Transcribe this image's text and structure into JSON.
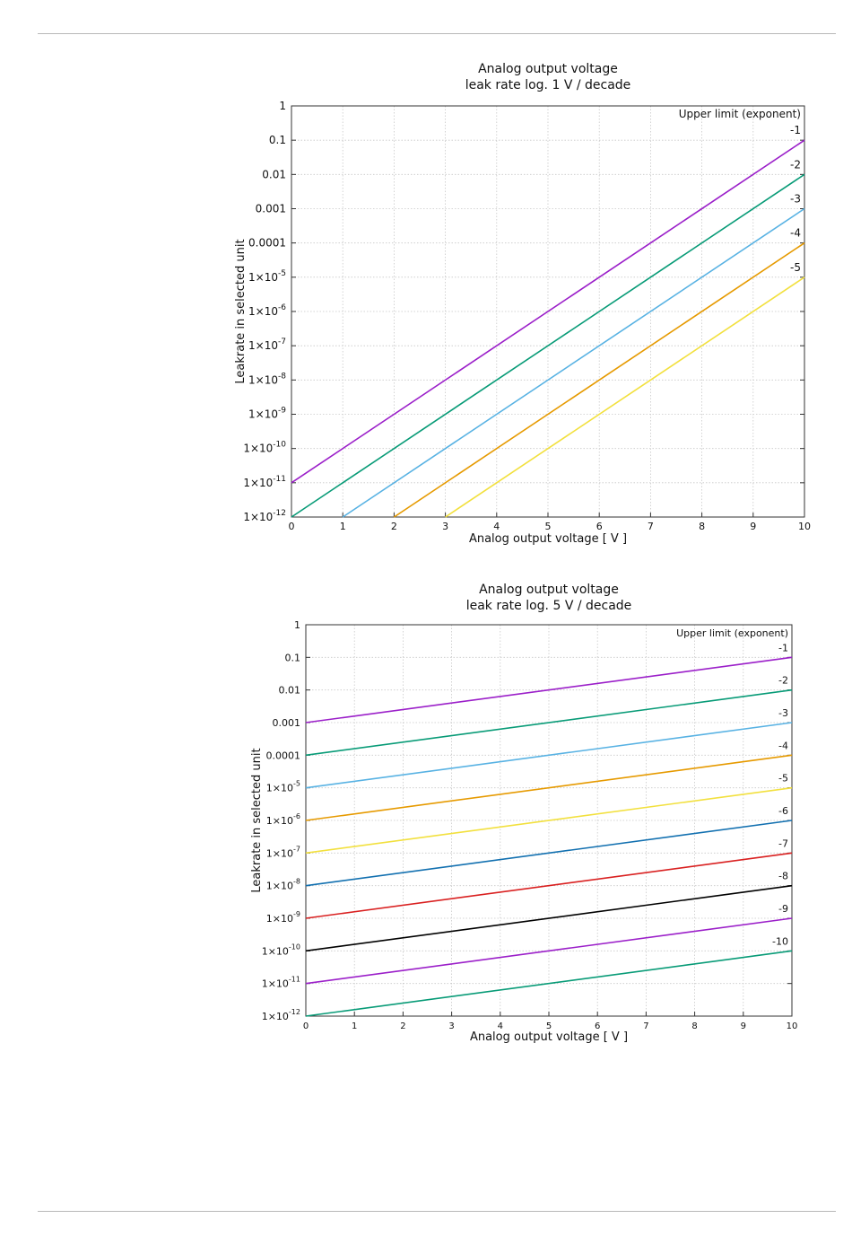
{
  "chart_data": [
    {
      "type": "line",
      "title": "Analog output voltage",
      "subtitle": "leak rate log. 1 V / decade",
      "xlabel": "Analog output voltage [ V ]",
      "ylabel": "Leakrate in selected unit",
      "xlim": [
        0,
        10
      ],
      "ylim_exponent": [
        -12,
        0
      ],
      "y_scale": "log",
      "grid": true,
      "xticks": [
        "0",
        "1",
        "2",
        "3",
        "4",
        "5",
        "6",
        "7",
        "8",
        "9",
        "10"
      ],
      "yticks": [
        {
          "mantissa": "1",
          "exp": ""
        },
        {
          "mantissa": "0.1",
          "exp": ""
        },
        {
          "mantissa": "0.01",
          "exp": ""
        },
        {
          "mantissa": "0.001",
          "exp": ""
        },
        {
          "mantissa": "0.0001",
          "exp": ""
        },
        {
          "mantissa": "1×10",
          "exp": "-5"
        },
        {
          "mantissa": "1×10",
          "exp": "-6"
        },
        {
          "mantissa": "1×10",
          "exp": "-7"
        },
        {
          "mantissa": "1×10",
          "exp": "-8"
        },
        {
          "mantissa": "1×10",
          "exp": "-9"
        },
        {
          "mantissa": "1×10",
          "exp": "-10"
        },
        {
          "mantissa": "1×10",
          "exp": "-11"
        },
        {
          "mantissa": "1×10",
          "exp": "-12"
        }
      ],
      "legend_title": "Upper limit (exponent)",
      "legend_position": "top-right",
      "series": [
        {
          "label": "-1",
          "color": "#9b1fc9",
          "x": [
            0,
            10
          ],
          "y": [
            1e-11,
            0.1
          ]
        },
        {
          "label": "-2",
          "color": "#089b77",
          "x": [
            0,
            10
          ],
          "y": [
            1e-12,
            0.01
          ]
        },
        {
          "label": "-3",
          "color": "#58b2e3",
          "x": [
            1,
            10
          ],
          "y": [
            1e-12,
            0.001
          ]
        },
        {
          "label": "-4",
          "color": "#e69a00",
          "x": [
            2,
            10
          ],
          "y": [
            1e-12,
            0.0001
          ]
        },
        {
          "label": "-5",
          "color": "#f2e03e",
          "x": [
            3,
            10
          ],
          "y": [
            1e-12,
            1e-05
          ]
        }
      ]
    },
    {
      "type": "line",
      "title": "Analog output voltage",
      "subtitle": "leak rate log. 5 V / decade",
      "xlabel": "Analog output voltage [ V ]",
      "ylabel": "Leakrate in selected unit",
      "xlim": [
        0,
        10
      ],
      "ylim_exponent": [
        -12,
        0
      ],
      "y_scale": "log",
      "grid": true,
      "xticks": [
        "0",
        "1",
        "2",
        "3",
        "4",
        "5",
        "6",
        "7",
        "8",
        "9",
        "10"
      ],
      "yticks": [
        {
          "mantissa": "1",
          "exp": ""
        },
        {
          "mantissa": "0.1",
          "exp": ""
        },
        {
          "mantissa": "0.01",
          "exp": ""
        },
        {
          "mantissa": "0.001",
          "exp": ""
        },
        {
          "mantissa": "0.0001",
          "exp": ""
        },
        {
          "mantissa": "1×10",
          "exp": "-5"
        },
        {
          "mantissa": "1×10",
          "exp": "-6"
        },
        {
          "mantissa": "1×10",
          "exp": "-7"
        },
        {
          "mantissa": "1×10",
          "exp": "-8"
        },
        {
          "mantissa": "1×10",
          "exp": "-9"
        },
        {
          "mantissa": "1×10",
          "exp": "-10"
        },
        {
          "mantissa": "1×10",
          "exp": "-11"
        },
        {
          "mantissa": "1×10",
          "exp": "-12"
        }
      ],
      "legend_title": "Upper limit (exponent)",
      "legend_position": "top-right",
      "series": [
        {
          "label": "-1",
          "color": "#9b1fc9",
          "x": [
            0,
            10
          ],
          "y": [
            0.001,
            0.1
          ]
        },
        {
          "label": "-2",
          "color": "#089b77",
          "x": [
            0,
            10
          ],
          "y": [
            0.0001,
            0.01
          ]
        },
        {
          "label": "-3",
          "color": "#58b2e3",
          "x": [
            0,
            10
          ],
          "y": [
            1e-05,
            0.001
          ]
        },
        {
          "label": "-4",
          "color": "#e69a00",
          "x": [
            0,
            10
          ],
          "y": [
            1e-06,
            0.0001
          ]
        },
        {
          "label": "-5",
          "color": "#f2e03e",
          "x": [
            0,
            10
          ],
          "y": [
            1e-07,
            1e-05
          ]
        },
        {
          "label": "-6",
          "color": "#1270b0",
          "x": [
            0,
            10
          ],
          "y": [
            1e-08,
            1e-06
          ]
        },
        {
          "label": "-7",
          "color": "#d92020",
          "x": [
            0,
            10
          ],
          "y": [
            1e-09,
            1e-07
          ]
        },
        {
          "label": "-8",
          "color": "#000000",
          "x": [
            0,
            10
          ],
          "y": [
            1e-10,
            1e-08
          ]
        },
        {
          "label": "-9",
          "color": "#9b1fc9",
          "x": [
            0,
            10
          ],
          "y": [
            1e-11,
            1e-09
          ]
        },
        {
          "label": "-10",
          "color": "#089b77",
          "x": [
            0,
            10
          ],
          "y": [
            1e-12,
            1e-10
          ]
        }
      ]
    }
  ]
}
